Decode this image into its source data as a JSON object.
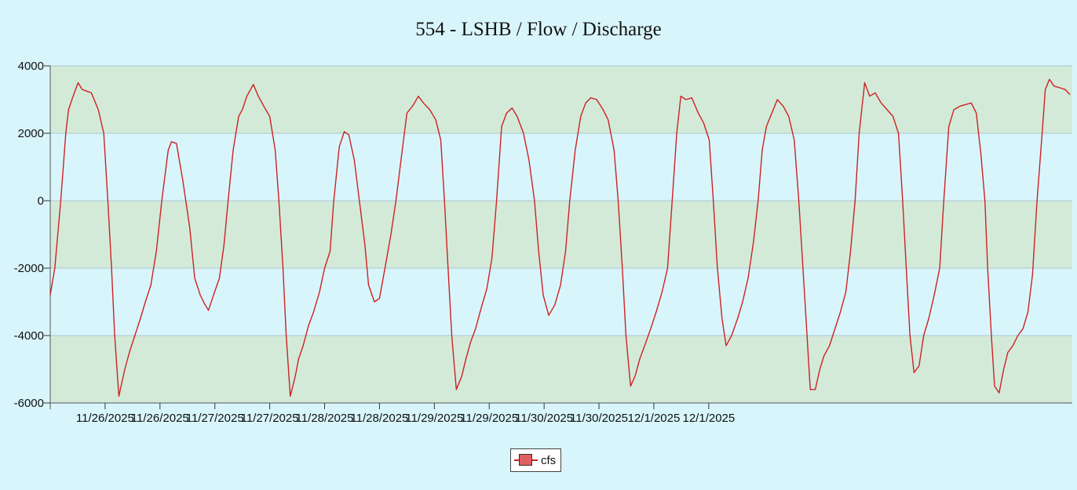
{
  "chart_data": {
    "type": "line",
    "title": "554 - LSHB / Flow / Discharge",
    "xlabel": "",
    "ylabel": "",
    "ylim": [
      -6000,
      4000
    ],
    "yticks": [
      4000,
      2000,
      0,
      -2000,
      -4000,
      -6000
    ],
    "ytick_labels": [
      "4000",
      "2000",
      "0",
      "-2000",
      "-4000",
      "-6000"
    ],
    "xtick_labels": [
      "11/26/2025",
      "11/26/2025",
      "11/27/2025",
      "11/27/2025",
      "11/28/2025",
      "11/28/2025",
      "11/29/2025",
      "11/29/2025",
      "11/30/2025",
      "11/30/2025",
      "12/1/2025",
      "12/1/2025"
    ],
    "x_unit": "hours from first sample",
    "band_colors": [
      "#d4ead9",
      "#d9f5fc"
    ],
    "legend_position": "bottom-center",
    "grid": true,
    "series": [
      {
        "name": "cfs",
        "color": "#cc2222",
        "fill_color": "#e06060",
        "points": [
          [
            0,
            -2800
          ],
          [
            1.0,
            -2000
          ],
          [
            2.3,
            0
          ],
          [
            3.4,
            2000
          ],
          [
            4.0,
            2700
          ],
          [
            5.0,
            3100
          ],
          [
            6.1,
            3500
          ],
          [
            7.0,
            3300
          ],
          [
            8.0,
            3250
          ],
          [
            9.0,
            3200
          ],
          [
            10.5,
            2700
          ],
          [
            11.7,
            2000
          ],
          [
            12.6,
            0
          ],
          [
            13.4,
            -2000
          ],
          [
            14.1,
            -4000
          ],
          [
            15.0,
            -5800
          ],
          [
            16.3,
            -5000
          ],
          [
            17.3,
            -4500
          ],
          [
            18.5,
            -4000
          ],
          [
            19.7,
            -3500
          ],
          [
            20.8,
            -3000
          ],
          [
            22.0,
            -2500
          ],
          [
            23.2,
            -1500
          ],
          [
            24.4,
            0
          ],
          [
            25.8,
            1500
          ],
          [
            26.5,
            1750
          ],
          [
            27.6,
            1700
          ],
          [
            29.0,
            600
          ],
          [
            30.5,
            -800
          ],
          [
            31.6,
            -2300
          ],
          [
            32.8,
            -2800
          ],
          [
            33.7,
            -3050
          ],
          [
            34.6,
            -3250
          ],
          [
            35.7,
            -2800
          ],
          [
            37.0,
            -2300
          ],
          [
            38.0,
            -1300
          ],
          [
            38.9,
            0
          ],
          [
            40.0,
            1500
          ],
          [
            41.2,
            2500
          ],
          [
            42.0,
            2700
          ],
          [
            43.0,
            3100
          ],
          [
            44.4,
            3450
          ],
          [
            45.5,
            3100
          ],
          [
            46.7,
            2800
          ],
          [
            48.0,
            2500
          ],
          [
            49.2,
            1500
          ],
          [
            50.0,
            0
          ],
          [
            50.9,
            -2000
          ],
          [
            51.6,
            -4000
          ],
          [
            52.5,
            -5800
          ],
          [
            53.6,
            -5200
          ],
          [
            54.3,
            -4700
          ],
          [
            55.3,
            -4300
          ],
          [
            56.5,
            -3700
          ],
          [
            57.6,
            -3300
          ],
          [
            58.9,
            -2700
          ],
          [
            60.0,
            -2000
          ],
          [
            61.2,
            -1500
          ],
          [
            62.0,
            0
          ],
          [
            63.2,
            1600
          ],
          [
            64.3,
            2050
          ],
          [
            65.3,
            1950
          ],
          [
            66.5,
            1200
          ],
          [
            67.6,
            0
          ],
          [
            68.8,
            -1300
          ],
          [
            69.6,
            -2500
          ],
          [
            70.9,
            -3000
          ],
          [
            72.0,
            -2900
          ],
          [
            73.2,
            -2000
          ],
          [
            74.5,
            -1000
          ],
          [
            75.6,
            0
          ],
          [
            76.7,
            1200
          ],
          [
            78.0,
            2600
          ],
          [
            79.2,
            2800
          ],
          [
            80.5,
            3100
          ],
          [
            81.6,
            2900
          ],
          [
            83.0,
            2700
          ],
          [
            84.3,
            2400
          ],
          [
            85.4,
            1800
          ],
          [
            86.2,
            0
          ],
          [
            87.0,
            -2000
          ],
          [
            87.8,
            -4000
          ],
          [
            88.8,
            -5600
          ],
          [
            90.0,
            -5200
          ],
          [
            90.9,
            -4700
          ],
          [
            91.9,
            -4200
          ],
          [
            93.0,
            -3800
          ],
          [
            94.2,
            -3200
          ],
          [
            95.5,
            -2600
          ],
          [
            96.6,
            -1700
          ],
          [
            97.6,
            0
          ],
          [
            98.7,
            2200
          ],
          [
            99.8,
            2600
          ],
          [
            101.0,
            2750
          ],
          [
            102.1,
            2500
          ],
          [
            103.5,
            2000
          ],
          [
            104.7,
            1200
          ],
          [
            105.9,
            0
          ],
          [
            106.8,
            -1500
          ],
          [
            107.8,
            -2800
          ],
          [
            109.0,
            -3400
          ],
          [
            110.3,
            -3100
          ],
          [
            111.6,
            -2500
          ],
          [
            112.7,
            -1500
          ],
          [
            113.6,
            0
          ],
          [
            114.8,
            1500
          ],
          [
            116.0,
            2500
          ],
          [
            117.1,
            2900
          ],
          [
            118.2,
            3050
          ],
          [
            119.5,
            3000
          ],
          [
            120.9,
            2700
          ],
          [
            122.0,
            2400
          ],
          [
            123.3,
            1500
          ],
          [
            124.2,
            0
          ],
          [
            125.1,
            -2000
          ],
          [
            125.9,
            -4000
          ],
          [
            126.9,
            -5500
          ],
          [
            127.9,
            -5200
          ],
          [
            128.9,
            -4700
          ],
          [
            130.0,
            -4300
          ],
          [
            131.3,
            -3800
          ],
          [
            132.5,
            -3300
          ],
          [
            133.8,
            -2700
          ],
          [
            135.0,
            -2000
          ],
          [
            136.0,
            0
          ],
          [
            137.0,
            2000
          ],
          [
            137.9,
            3100
          ],
          [
            139.0,
            3000
          ],
          [
            140.3,
            3050
          ],
          [
            141.7,
            2600
          ],
          [
            142.9,
            2300
          ],
          [
            144.1,
            1800
          ],
          [
            145.0,
            0
          ],
          [
            145.9,
            -2000
          ],
          [
            146.9,
            -3500
          ],
          [
            147.8,
            -4300
          ],
          [
            149.0,
            -4000
          ],
          [
            150.3,
            -3500
          ],
          [
            151.4,
            -3000
          ],
          [
            152.6,
            -2300
          ],
          [
            153.8,
            -1200
          ],
          [
            154.8,
            0
          ],
          [
            155.7,
            1500
          ],
          [
            156.6,
            2200
          ],
          [
            157.8,
            2600
          ],
          [
            159.0,
            3000
          ],
          [
            160.3,
            2800
          ],
          [
            161.5,
            2500
          ],
          [
            162.7,
            1800
          ],
          [
            163.7,
            0
          ],
          [
            164.6,
            -2000
          ],
          [
            165.5,
            -4000
          ],
          [
            166.2,
            -5600
          ],
          [
            167.3,
            -5600
          ],
          [
            168.3,
            -5000
          ],
          [
            169.2,
            -4600
          ],
          [
            170.4,
            -4300
          ],
          [
            171.6,
            -3800
          ],
          [
            172.8,
            -3300
          ],
          [
            174.0,
            -2700
          ],
          [
            175.0,
            -1500
          ],
          [
            176.0,
            0
          ],
          [
            176.9,
            2000
          ],
          [
            178.1,
            3500
          ],
          [
            179.2,
            3100
          ],
          [
            180.4,
            3200
          ],
          [
            181.7,
            2900
          ],
          [
            183.0,
            2700
          ],
          [
            184.3,
            2500
          ],
          [
            185.5,
            2000
          ],
          [
            186.4,
            0
          ],
          [
            187.2,
            -2000
          ],
          [
            188.0,
            -4000
          ],
          [
            188.9,
            -5100
          ],
          [
            190.0,
            -4900
          ],
          [
            191.0,
            -4000
          ],
          [
            192.1,
            -3500
          ],
          [
            193.3,
            -2800
          ],
          [
            194.5,
            -2000
          ],
          [
            195.4,
            0
          ],
          [
            196.5,
            2200
          ],
          [
            197.6,
            2700
          ],
          [
            198.9,
            2800
          ],
          [
            200.1,
            2850
          ],
          [
            201.4,
            2900
          ],
          [
            202.5,
            2600
          ],
          [
            203.5,
            1400
          ],
          [
            204.4,
            0
          ],
          [
            205.0,
            -2000
          ],
          [
            205.8,
            -4000
          ],
          [
            206.5,
            -5500
          ],
          [
            207.5,
            -5700
          ],
          [
            208.5,
            -5000
          ],
          [
            209.4,
            -4500
          ],
          [
            210.5,
            -4300
          ],
          [
            211.6,
            -4000
          ],
          [
            212.7,
            -3800
          ],
          [
            213.8,
            -3300
          ],
          [
            214.8,
            -2200
          ],
          [
            215.8,
            0
          ],
          [
            216.9,
            2000
          ],
          [
            217.6,
            3300
          ],
          [
            218.5,
            3600
          ],
          [
            219.5,
            3400
          ],
          [
            220.8,
            3350
          ],
          [
            221.9,
            3300
          ],
          [
            223.0,
            3150
          ]
        ]
      }
    ]
  }
}
